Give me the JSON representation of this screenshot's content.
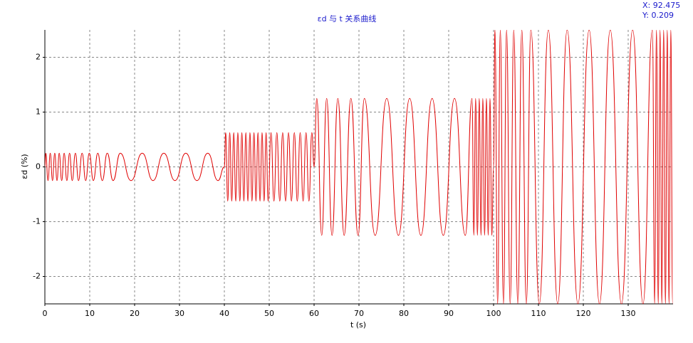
{
  "chart_data": {
    "type": "line",
    "title": "εd 与 t 关系曲线",
    "cursor_readout": [
      "X: 92.475",
      "Y: 0.209"
    ],
    "x_label": "t (s)",
    "y_label": "εd (%)",
    "xlim": [
      0,
      140
    ],
    "xticks": [
      0,
      10,
      20,
      30,
      40,
      50,
      60,
      70,
      80,
      90,
      100,
      110,
      120,
      130
    ],
    "ylim": [
      -2.5,
      2.5
    ],
    "yticks": [
      -2,
      -1,
      0,
      1,
      2
    ],
    "grid": true,
    "x": [
      0,
      0.2,
      0.7,
      1.2,
      1.7,
      2.2,
      2.7,
      3.2,
      3.75,
      4.3,
      4.9,
      5.5,
      6.1,
      6.8,
      7.5,
      8.3,
      9.1,
      9.9,
      10.8,
      11.8,
      12.8,
      13.9,
      15.2,
      16.8,
      19.2,
      21.7,
      24.1,
      26.5,
      29,
      31.4,
      33.9,
      36.3,
      38.6,
      40,
      40.3,
      40.75,
      41.2,
      41.65,
      42.1,
      42.55,
      43,
      43.45,
      43.9,
      44.35,
      44.8,
      45.25,
      45.7,
      46.15,
      46.6,
      47.05,
      47.5,
      47.95,
      48.4,
      48.85,
      49.3,
      49.75,
      50.4,
      51.05,
      51.7,
      52.35,
      53,
      53.65,
      54.3,
      54.95,
      55.6,
      56.25,
      56.9,
      57.55,
      58.2,
      58.85,
      59.5,
      60,
      60.6,
      61.7,
      62.8,
      64,
      65.3,
      66.7,
      68.2,
      69.8,
      71.2,
      73.6,
      76.2,
      78.8,
      81.3,
      83.8,
      86.3,
      88.8,
      91.3,
      93.7,
      95.2,
      95.6,
      96,
      96.4,
      96.8,
      97.2,
      97.6,
      98,
      98.4,
      98.8,
      99.2,
      99.6,
      100,
      100.3,
      100.9,
      101.5,
      102.2,
      102.9,
      103.7,
      104.5,
      105.4,
      106.3,
      107.3,
      108.3,
      110.2,
      112.2,
      114.3,
      116.4,
      118.8,
      121.3,
      123.6,
      126,
      128.5,
      131,
      133.3,
      135.4,
      135.9,
      136.3,
      136.7,
      137.1,
      137.5,
      137.9,
      138.3,
      138.7,
      139.1,
      139.5,
      139.9
    ],
    "series": [
      {
        "color": "#e00000",
        "values": [
          0,
          0.25,
          -0.25,
          0.25,
          -0.25,
          0.25,
          -0.25,
          0.25,
          -0.25,
          0.25,
          -0.25,
          0.25,
          -0.25,
          0.25,
          -0.25,
          0.25,
          -0.25,
          0.25,
          -0.25,
          0.25,
          -0.25,
          0.25,
          -0.25,
          0.25,
          -0.25,
          0.25,
          -0.25,
          0.25,
          -0.25,
          0.25,
          -0.25,
          0.25,
          -0.25,
          0,
          0.625,
          -0.625,
          0.625,
          -0.625,
          0.625,
          -0.625,
          0.625,
          -0.625,
          0.625,
          -0.625,
          0.625,
          -0.625,
          0.625,
          -0.625,
          0.625,
          -0.625,
          0.625,
          -0.625,
          0.625,
          -0.625,
          0.625,
          -0.625,
          0.625,
          -0.625,
          0.625,
          -0.625,
          0.625,
          -0.625,
          0.625,
          -0.625,
          0.625,
          -0.625,
          0.625,
          -0.625,
          0.625,
          -0.625,
          0.625,
          0,
          1.25,
          -1.25,
          1.25,
          -1.25,
          1.25,
          -1.25,
          1.25,
          -1.25,
          1.25,
          -1.25,
          1.25,
          -1.25,
          1.25,
          -1.25,
          1.25,
          -1.25,
          1.25,
          -1.25,
          1.25,
          -1.25,
          1.25,
          -1.25,
          1.25,
          -1.25,
          1.25,
          -1.25,
          1.25,
          -1.25,
          1.25,
          -1.25,
          0,
          2.5,
          -2.5,
          2.5,
          -2.5,
          2.5,
          -2.5,
          2.5,
          -2.5,
          2.5,
          -2.5,
          2.5,
          -2.5,
          2.5,
          -2.5,
          2.5,
          -2.5,
          2.5,
          -2.5,
          2.5,
          -2.5,
          2.5,
          -2.5,
          2.5,
          -2.5,
          2.5,
          -2.5,
          2.5,
          -2.5,
          2.5,
          -2.5,
          2.5,
          -2.5,
          2.5,
          -2.5
        ]
      }
    ]
  }
}
